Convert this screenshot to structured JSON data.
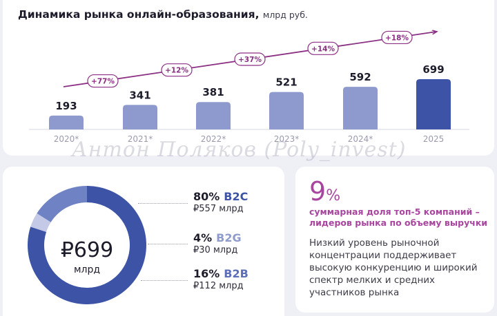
{
  "header": {
    "title": "Динамика рынка онлайн-образования,",
    "unit": "млрд руб."
  },
  "chart_data": [
    {
      "type": "bar",
      "title": "Динамика рынка онлайн-образования,",
      "categories": [
        "2020*",
        "2021*",
        "2022*",
        "2023*",
        "2024*",
        "2025"
      ],
      "values": [
        193,
        341,
        381,
        521,
        592,
        699
      ],
      "value_labels": [
        "193",
        "341",
        "381",
        "521",
        "592",
        "699"
      ],
      "growth_labels": [
        "+77%",
        "+12%",
        "+37%",
        "+14%",
        "+18%"
      ],
      "ylim": [
        0,
        699
      ],
      "grid": false,
      "colors": {
        "bar": "#8e9acd",
        "bar_highlight": "#3d54a6",
        "arrow": "#8a2f82"
      }
    },
    {
      "type": "pie",
      "categories": [
        "B2C",
        "B2G",
        "B2B"
      ],
      "values": [
        80,
        4,
        16
      ],
      "center_value": "₽699",
      "center_unit": "млрд",
      "colors": [
        "#3d54a6",
        "#c3c9e6",
        "#6f82c4"
      ]
    }
  ],
  "segments": [
    {
      "pct": "80%",
      "name": "B2C",
      "amount": "₽557 млрд",
      "color": "#3d54a6"
    },
    {
      "pct": "4%",
      "name": "B2G",
      "amount": "₽30 млрд",
      "color": "#8f9bcd"
    },
    {
      "pct": "16%",
      "name": "B2B",
      "amount": "₽112 млрд",
      "color": "#5b6fb8"
    }
  ],
  "info": {
    "value": "9",
    "sign": "%",
    "highlight": "суммарная доля топ-5 компаний – лидеров рынка по объему выручки",
    "body": "Низкий уровень рыночной концентрации поддерживает высокую конкуренцию и широкий спектр мелких и средних участников рынка"
  },
  "watermark": "Антон Поляков (Poly_invest)"
}
